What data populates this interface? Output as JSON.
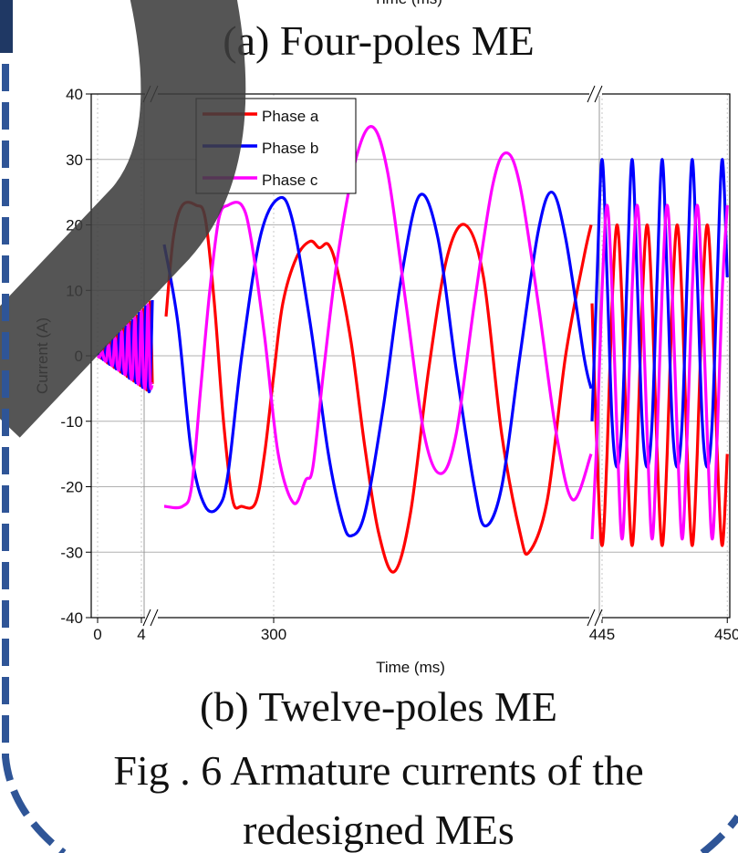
{
  "top_fragment": "Time (ms)",
  "caption_a": "(a) Four-poles ME",
  "chart_data": {
    "type": "line",
    "xlabel": "Time (ms)",
    "ylabel": "Current (A)",
    "ylim": [
      -40,
      40
    ],
    "yticks": [
      -40,
      -30,
      -20,
      -10,
      0,
      10,
      20,
      30,
      40
    ],
    "grid": true,
    "legend": "upper-left",
    "x_segments": [
      {
        "xlim": [
          0,
          5
        ],
        "xticks": [
          0,
          4
        ]
      },
      {
        "xlim": [
          286.5,
          335
        ],
        "xticks": [
          300
        ]
      },
      {
        "xlim": [
          444.6,
          450.1
        ],
        "xticks": [
          445,
          450
        ]
      }
    ],
    "series": [
      {
        "name": "Phase a",
        "color": "#ff0000",
        "segments": [
          {
            "x": [
              0,
              0.2,
              0.4,
              0.6,
              0.8,
              1,
              1.2,
              1.4,
              1.6,
              1.8,
              2,
              2.2,
              2.4,
              2.6,
              2.8,
              3,
              3.2,
              3.4,
              3.6,
              3.8,
              4,
              4.2,
              4.4,
              4.6,
              4.8,
              5
            ],
            "values": [
              0,
              -0.2,
              -0.3,
              1,
              -0.7,
              -0.9,
              2,
              -1.2,
              -1.4,
              3.1,
              -1.7,
              -1.9,
              4.1,
              -2.2,
              -2.4,
              5.1,
              -2.7,
              -2.9,
              6.1,
              -3.2,
              -3.4,
              7.1,
              -3.7,
              -3.9,
              8.2,
              -4.3
            ]
          },
          {
            "x": [
              288.2,
              289,
              290,
              291.5,
              292.5,
              293.5,
              294.5,
              295.5,
              296.5,
              298,
              299,
              300,
              301,
              302.5,
              304,
              305,
              306,
              307,
              308.5,
              310,
              311.5,
              313.2,
              315,
              317,
              319,
              321,
              323,
              325,
              327,
              328,
              330,
              332,
              334,
              334.8
            ],
            "values": [
              6,
              18,
              23,
              23,
              21,
              8,
              -10,
              -22,
              -23,
              -22.5,
              -15,
              -3,
              8,
              15,
              17.5,
              16.5,
              17,
              13,
              2,
              -14,
              -27,
              -33,
              -24,
              -2,
              15,
              20,
              12,
              -12,
              -27,
              -30,
              -22,
              0,
              15,
              20
            ]
          },
          {
            "x": [
              444.6,
              444.8,
              445,
              445.2,
              445.4,
              445.6,
              445.8,
              446,
              446.2,
              446.4,
              446.6,
              446.8,
              447,
              447.2,
              447.4,
              447.6,
              447.8,
              448,
              448.2,
              448.4,
              448.6,
              448.8,
              449,
              449.2,
              449.4,
              449.6,
              449.8,
              450
            ],
            "values": [
              8,
              -15,
              -29,
              -15,
              8,
              20,
              8,
              -15,
              -29,
              -15,
              8,
              20,
              8,
              -15,
              -29,
              -15,
              8,
              20,
              8,
              -15,
              -29,
              -15,
              8,
              20,
              8,
              -15,
              -29,
              -15
            ]
          }
        ]
      },
      {
        "name": "Phase b",
        "color": "#0000ff",
        "segments": [
          {
            "x": [
              0,
              0.2,
              0.4,
              0.6,
              0.8,
              1,
              1.2,
              1.4,
              1.6,
              1.8,
              2,
              2.2,
              2.4,
              2.6,
              2.8,
              3,
              3.2,
              3.4,
              3.6,
              3.8,
              4,
              4.2,
              4.4,
              4.6,
              4.8,
              5
            ],
            "values": [
              0,
              0.3,
              -0.3,
              -0.5,
              1.4,
              -0.9,
              -1,
              2.4,
              -1.4,
              -1.5,
              3.4,
              -1.9,
              -2,
              4.4,
              -2.4,
              -2.6,
              5.4,
              -2.9,
              -3.1,
              6.5,
              -3.4,
              -3.6,
              7.5,
              -3.9,
              -4.1,
              8.5
            ]
          },
          {
            "x": [
              288,
              289.5,
              291,
              292.5,
              294,
              295,
              296.5,
              298.5,
              300.5,
              302,
              304,
              306,
              307.5,
              308.5,
              310,
              312,
              314,
              316,
              318,
              320,
              322,
              323.2,
              325,
              327,
              329,
              330.5,
              332,
              334,
              334.8
            ],
            "values": [
              17,
              5,
              -15,
              -23,
              -23,
              -18,
              0,
              18,
              24,
              21,
              5,
              -15,
              -25,
              -27.5,
              -24,
              -8,
              12,
              24.5,
              18,
              -2,
              -20,
              -26,
              -20,
              0,
              19,
              25,
              18,
              0,
              -5
            ]
          },
          {
            "x": [
              444.6,
              444.8,
              445,
              445.2,
              445.4,
              445.6,
              445.8,
              446,
              446.2,
              446.4,
              446.6,
              446.8,
              447,
              447.2,
              447.4,
              447.6,
              447.8,
              448,
              448.2,
              448.4,
              448.6,
              448.8,
              449,
              449.2,
              449.4,
              449.6,
              449.8,
              450
            ],
            "values": [
              -10,
              12,
              30,
              12,
              -10,
              -17,
              -10,
              12,
              30,
              12,
              -10,
              -17,
              -10,
              12,
              30,
              12,
              -10,
              -17,
              -10,
              12,
              30,
              12,
              -10,
              -17,
              -10,
              12,
              30,
              12
            ]
          }
        ]
      },
      {
        "name": "Phase c",
        "color": "#ff00ff",
        "segments": [
          {
            "x": [
              0,
              0.2,
              0.4,
              0.6,
              0.8,
              1,
              1.2,
              1.4,
              1.6,
              1.8,
              2,
              2.2,
              2.4,
              2.6,
              2.8,
              3,
              3.2,
              3.4,
              3.6,
              3.8,
              4,
              4.2,
              4.4,
              4.6,
              4.8,
              5
            ],
            "values": [
              0,
              -0.2,
              0.7,
              -0.5,
              -0.7,
              1.7,
              -1,
              -1.2,
              2.7,
              -1.5,
              -1.7,
              3.7,
              -2,
              -2.2,
              4.8,
              -2.6,
              -2.7,
              5.8,
              -3.1,
              -3.2,
              6.8,
              -3.6,
              -3.7,
              7.8,
              -4.1,
              -4.3
            ]
          },
          {
            "x": [
              288,
              290,
              291,
              292,
              293,
              294,
              295,
              296.5,
              297.5,
              299,
              300.5,
              302.2,
              303.5,
              304.3,
              305.5,
              307,
              309,
              310.8,
              312.5,
              314.5,
              316.5,
              318.3,
              320,
              322,
              324,
              325.5,
              327,
              329,
              331,
              332.8,
              334.8
            ],
            "values": [
              -23,
              -23,
              -20,
              -5,
              10,
              21,
              23,
              23,
              18,
              3,
              -15,
              -22.5,
              -19,
              -17,
              -2,
              15,
              30,
              35,
              28,
              8,
              -12,
              -18,
              -12,
              8,
              26,
              31,
              26,
              8,
              -12,
              -22,
              -15
            ]
          },
          {
            "x": [
              444.6,
              444.8,
              445,
              445.2,
              445.4,
              445.6,
              445.8,
              446,
              446.2,
              446.4,
              446.6,
              446.8,
              447,
              447.2,
              447.4,
              447.6,
              447.8,
              448,
              448.2,
              448.4,
              448.6,
              448.8,
              449,
              449.2,
              449.4,
              449.6,
              449.8,
              450
            ],
            "values": [
              -28,
              -12,
              10,
              23,
              10,
              -12,
              -28,
              -12,
              10,
              23,
              10,
              -12,
              -28,
              -12,
              10,
              23,
              10,
              -12,
              -28,
              -12,
              10,
              23,
              10,
              -12,
              -28,
              -12,
              10,
              23
            ]
          }
        ]
      }
    ]
  },
  "caption_b": "(b) Twelve-poles ME",
  "figure_caption": [
    "Fig . 6 Armature currents of the",
    "redesigned MEs"
  ]
}
